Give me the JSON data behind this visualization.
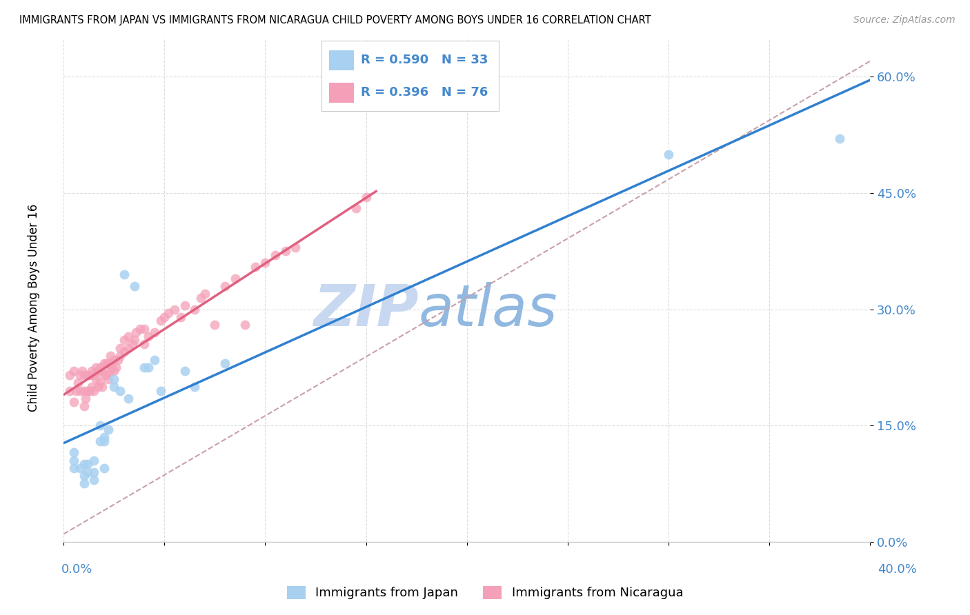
{
  "title": "IMMIGRANTS FROM JAPAN VS IMMIGRANTS FROM NICARAGUA CHILD POVERTY AMONG BOYS UNDER 16 CORRELATION CHART",
  "source": "Source: ZipAtlas.com",
  "ylabel": "Child Poverty Among Boys Under 16",
  "xlim": [
    0.0,
    0.4
  ],
  "ylim": [
    0.0,
    0.65
  ],
  "ytick_vals": [
    0.0,
    0.15,
    0.3,
    0.45,
    0.6
  ],
  "legend_japan_R": "R = 0.590",
  "legend_japan_N": "N = 33",
  "legend_nicaragua_R": "R = 0.396",
  "legend_nicaragua_N": "N = 76",
  "color_japan": "#A8D0F0",
  "color_nicaragua": "#F4A0B8",
  "color_japan_line": "#3080D0",
  "color_nicaragua_line": "#E06080",
  "color_ref_line": "#C8A0A8",
  "watermark_zip": "ZIP",
  "watermark_atlas": "atlas",
  "watermark_color_zip": "#C8D8F0",
  "watermark_color_atlas": "#90B8E0",
  "japan_x": [
    0.005,
    0.005,
    0.005,
    0.008,
    0.01,
    0.01,
    0.01,
    0.012,
    0.012,
    0.015,
    0.015,
    0.015,
    0.018,
    0.018,
    0.02,
    0.02,
    0.02,
    0.022,
    0.025,
    0.025,
    0.028,
    0.03,
    0.032,
    0.035,
    0.04,
    0.042,
    0.045,
    0.048,
    0.06,
    0.065,
    0.08,
    0.3,
    0.385
  ],
  "japan_y": [
    0.095,
    0.105,
    0.115,
    0.095,
    0.075,
    0.085,
    0.1,
    0.09,
    0.1,
    0.08,
    0.09,
    0.105,
    0.13,
    0.15,
    0.13,
    0.135,
    0.095,
    0.145,
    0.2,
    0.21,
    0.195,
    0.345,
    0.185,
    0.33,
    0.225,
    0.225,
    0.235,
    0.195,
    0.22,
    0.2,
    0.23,
    0.5,
    0.52
  ],
  "nicaragua_x": [
    0.003,
    0.003,
    0.005,
    0.005,
    0.006,
    0.007,
    0.008,
    0.008,
    0.009,
    0.01,
    0.01,
    0.01,
    0.011,
    0.012,
    0.012,
    0.013,
    0.013,
    0.014,
    0.014,
    0.015,
    0.015,
    0.016,
    0.016,
    0.017,
    0.017,
    0.018,
    0.018,
    0.019,
    0.019,
    0.02,
    0.02,
    0.021,
    0.021,
    0.022,
    0.022,
    0.023,
    0.023,
    0.024,
    0.025,
    0.025,
    0.026,
    0.027,
    0.028,
    0.028,
    0.03,
    0.03,
    0.032,
    0.032,
    0.034,
    0.035,
    0.036,
    0.038,
    0.04,
    0.04,
    0.042,
    0.045,
    0.048,
    0.05,
    0.052,
    0.055,
    0.058,
    0.06,
    0.065,
    0.068,
    0.07,
    0.075,
    0.08,
    0.085,
    0.09,
    0.095,
    0.1,
    0.105,
    0.11,
    0.115,
    0.145,
    0.15
  ],
  "nicaragua_y": [
    0.195,
    0.215,
    0.18,
    0.22,
    0.195,
    0.205,
    0.195,
    0.215,
    0.22,
    0.175,
    0.195,
    0.215,
    0.185,
    0.195,
    0.215,
    0.195,
    0.215,
    0.2,
    0.22,
    0.195,
    0.215,
    0.21,
    0.225,
    0.2,
    0.22,
    0.205,
    0.225,
    0.2,
    0.22,
    0.215,
    0.23,
    0.215,
    0.23,
    0.21,
    0.23,
    0.22,
    0.24,
    0.225,
    0.22,
    0.235,
    0.225,
    0.235,
    0.24,
    0.25,
    0.245,
    0.26,
    0.25,
    0.265,
    0.255,
    0.26,
    0.27,
    0.275,
    0.255,
    0.275,
    0.265,
    0.27,
    0.285,
    0.29,
    0.295,
    0.3,
    0.29,
    0.305,
    0.3,
    0.315,
    0.32,
    0.28,
    0.33,
    0.34,
    0.28,
    0.355,
    0.36,
    0.37,
    0.375,
    0.38,
    0.43,
    0.445
  ],
  "ref_line_x": [
    0.0,
    0.4
  ],
  "ref_line_y": [
    0.01,
    0.62
  ],
  "japan_line_x": [
    0.0,
    0.4
  ],
  "japan_line_y": [
    0.085,
    0.625
  ],
  "nicaragua_line_x": [
    0.0,
    0.16
  ],
  "nicaragua_line_y": [
    0.19,
    0.445
  ]
}
